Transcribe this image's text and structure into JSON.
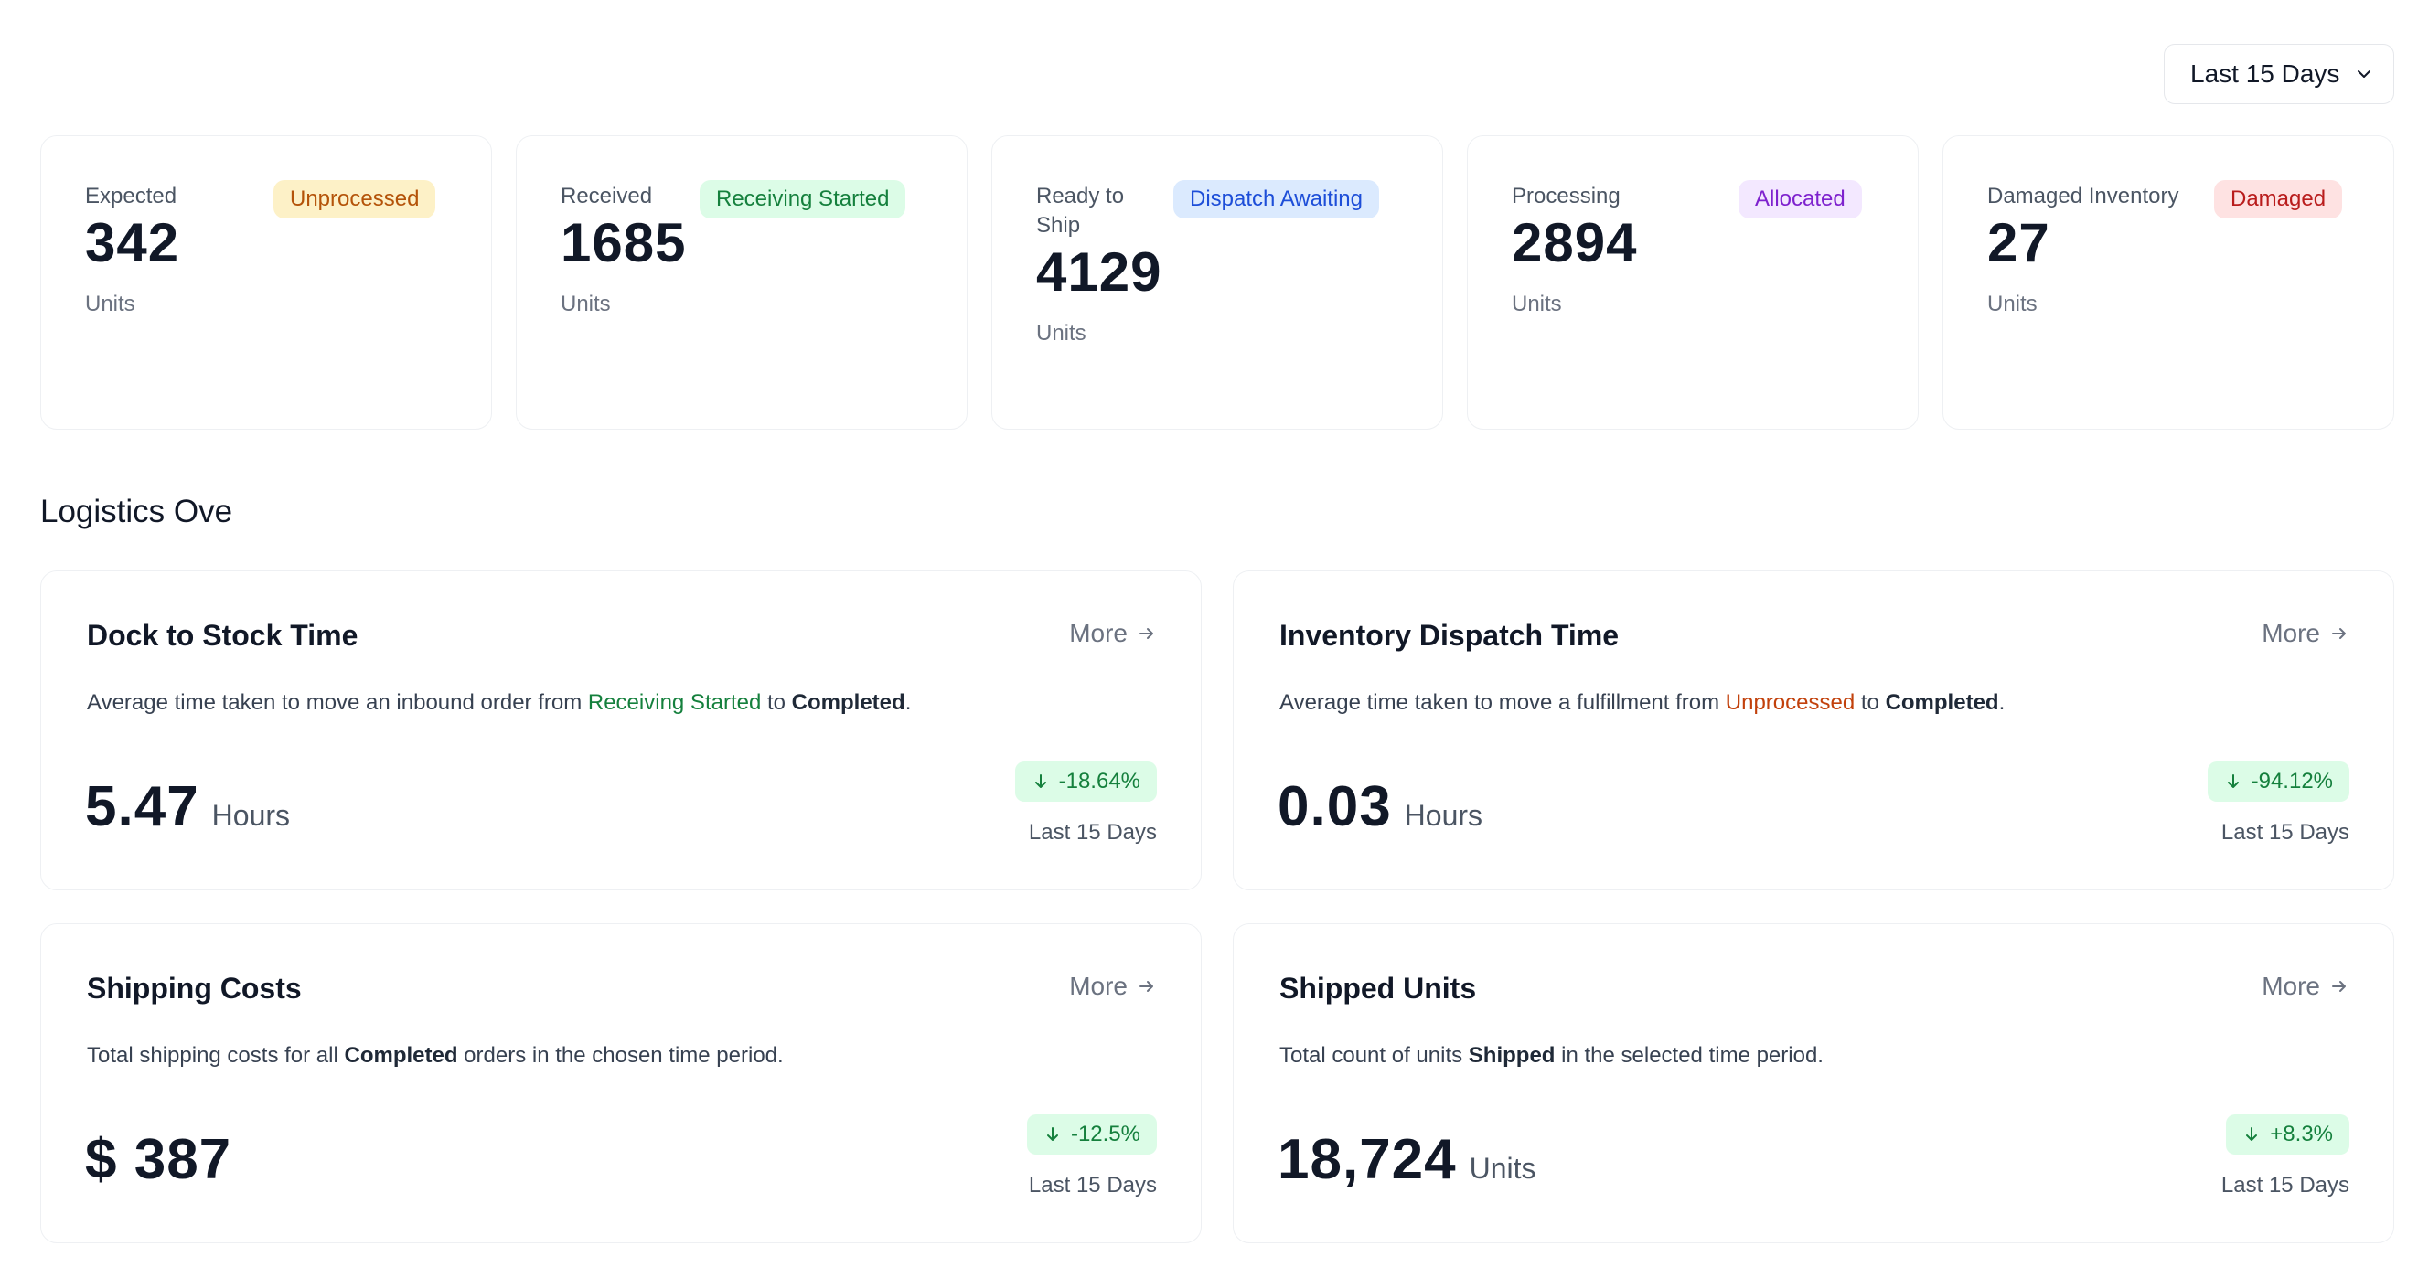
{
  "range_selector": {
    "selected": "Last 15 Days"
  },
  "status_cards": [
    {
      "label": "Expected",
      "badge": "Unprocessed",
      "value": "342",
      "unit": "Units"
    },
    {
      "label": "Received",
      "badge": "Receiving Started",
      "value": "1685",
      "unit": "Units"
    },
    {
      "label": "Ready to Ship",
      "badge": "Dispatch Awaiting",
      "value": "4129",
      "unit": "Units"
    },
    {
      "label": "Processing",
      "badge": "Allocated",
      "value": "2894",
      "unit": "Units"
    },
    {
      "label": "Damaged Inventory",
      "badge": "Damaged",
      "value": "27",
      "unit": "Units"
    }
  ],
  "section": {
    "title": "Logistics Ove"
  },
  "metrics": [
    {
      "title": "Dock to Stock Time",
      "more": "More",
      "desc_pre": "Average time taken to move an inbound order from ",
      "desc_highlight": "Receiving Started",
      "desc_mid": " to ",
      "desc_bold": "Completed",
      "desc_post": ".",
      "value": "5.47",
      "unit": "Hours",
      "change": "-18.64%",
      "period": "Last 15 Days"
    },
    {
      "title": "Inventory Dispatch Time",
      "more": "More",
      "desc_pre": "Average time taken to move a fulfillment from ",
      "desc_highlight": "Unprocessed",
      "desc_mid": " to ",
      "desc_bold": "Completed",
      "desc_post": ".",
      "value": "0.03",
      "unit": "Hours",
      "change": "-94.12%",
      "period": "Last 15 Days"
    },
    {
      "title": "Shipping Costs",
      "more": "More",
      "desc_pre": "Total shipping costs for all ",
      "desc_bold": "Completed",
      "desc_post": " orders in the chosen time period.",
      "value": "$ 387",
      "change": "-12.5%",
      "period": "Last 15 Days"
    },
    {
      "title": "Shipped Units",
      "more": "More",
      "desc_pre": "Total count of units ",
      "desc_bold": "Shipped",
      "desc_post": " in the selected time period.",
      "value": "18,724",
      "unit": "Units",
      "change": "+8.3%",
      "period": "Last 15 Days"
    }
  ],
  "icons": {
    "dropdown": "chevron-down-icon",
    "more": "arrow-right-icon",
    "change": "arrow-down-icon"
  }
}
